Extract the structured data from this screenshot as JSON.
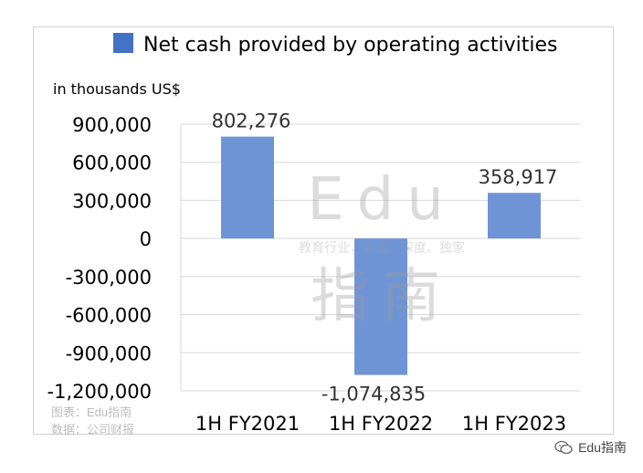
{
  "chart_data": {
    "type": "bar",
    "ylabel": "in thousands US$",
    "categories": [
      "1H FY2021",
      "1H FY2022",
      "1H FY2023"
    ],
    "series": [
      {
        "name": "Net cash provided by operating activities",
        "values": [
          802276,
          -1074835,
          358917
        ]
      }
    ],
    "data_labels": [
      "802,276",
      "-1,074,835",
      "358,917"
    ],
    "ylim": [
      -1200000,
      900000
    ],
    "yticks": [
      900000,
      600000,
      300000,
      0,
      -300000,
      -600000,
      -900000,
      -1200000
    ],
    "ytick_labels": [
      "900,000",
      "600,000",
      "300,000",
      "0",
      "-300,000",
      "-600,000",
      "-900,000",
      "-1,200,000"
    ],
    "grid": true,
    "legend": "top",
    "bar_color": "#6f94d6",
    "legend_color": "#4472c4"
  },
  "watermark": {
    "line1": "Edu",
    "line2": "教育行业，前沿、深度、独家",
    "line3": "指南"
  },
  "footer": {
    "chart_source": "图表：Edu指南",
    "data_source": "数据：公司财报",
    "brand": "Edu指南",
    "brand_icon": "wechat-icon"
  }
}
